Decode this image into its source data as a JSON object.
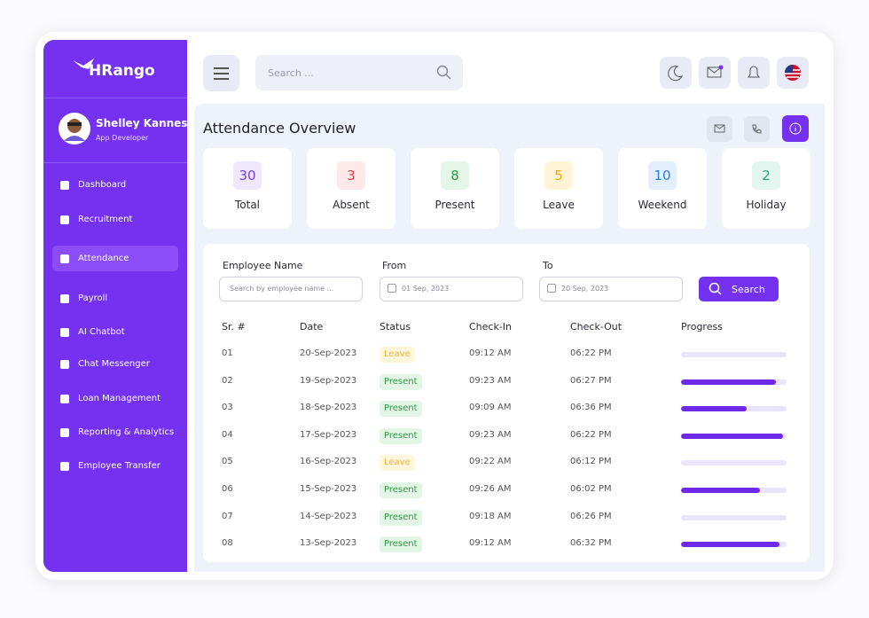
{
  "brand": "HRango",
  "search_placeholder": "Search ...",
  "user": {
    "name": "Shelley Kannes",
    "role": "App Developer"
  },
  "nav": [
    "Dashboard",
    "Recruitment",
    "Attendance",
    "Payroll",
    "AI Chatbot",
    "Chat Messenger",
    "Loan Management",
    "Reporting & Analytics",
    "Employee Transfer"
  ],
  "page_title": "Attendance Overview",
  "stats": [
    {
      "value": 30,
      "label": "Total",
      "color": "#7b3fe4",
      "bg": "#efe7fc"
    },
    {
      "value": 3,
      "label": "Absent",
      "color": "#e23b4a",
      "bg": "#fde8ea"
    },
    {
      "value": 8,
      "label": "Present",
      "color": "#2e9b46",
      "bg": "#e3f6e8"
    },
    {
      "value": 5,
      "label": "Leave",
      "color": "#f0a400",
      "bg": "#fff4d6"
    },
    {
      "value": 10,
      "label": "Weekend",
      "color": "#2f7de1",
      "bg": "#e3efff"
    },
    {
      "value": 2,
      "label": "Holiday",
      "color": "#27a57a",
      "bg": "#e2f6ef"
    }
  ],
  "filters": [
    {
      "label": "Employee Name",
      "placeholder": "Search by employee name ..."
    },
    {
      "label": "From",
      "placeholder": "01 Sep, 2023"
    },
    {
      "label": "To",
      "placeholder": "20 Sep, 2023"
    }
  ],
  "search_button": "Search",
  "table": {
    "columns": [
      "Sr. #",
      "Date",
      "Status",
      "Check-In",
      "Check-Out",
      "Progress"
    ],
    "rows": [
      {
        "sr": "01",
        "date": "20-Sep-2023",
        "status": "Leave",
        "status_color": "#f2b233",
        "status_bg": "#fff6dc",
        "check_in": "09:12 AM",
        "check_out": "06:22 PM",
        "progress": 0
      },
      {
        "sr": "02",
        "date": "19-Sep-2023",
        "status": "Present",
        "status_color": "#2f9a45",
        "status_bg": "#e3f5e5",
        "check_in": "09:23 AM",
        "check_out": "06:27 PM",
        "progress": 90
      },
      {
        "sr": "03",
        "date": "18-Sep-2023",
        "status": "Present",
        "status_color": "#2f9a45",
        "status_bg": "#e3f5e5",
        "check_in": "09:09 AM",
        "check_out": "06:36 PM",
        "progress": 62
      },
      {
        "sr": "04",
        "date": "17-Sep-2023",
        "status": "Present",
        "status_color": "#2f9a45",
        "status_bg": "#e3f5e5",
        "check_in": "09:23 AM",
        "check_out": "06:22 PM",
        "progress": 97
      },
      {
        "sr": "05",
        "date": "16-Sep-2023",
        "status": "Leave",
        "status_color": "#f2b233",
        "status_bg": "#fff6dc",
        "check_in": "09:22 AM",
        "check_out": "06:12 PM",
        "progress": 0
      },
      {
        "sr": "06",
        "date": "15-Sep-2023",
        "status": "Present",
        "status_color": "#2f9a45",
        "status_bg": "#e3f5e5",
        "check_in": "09:26 AM",
        "check_out": "06:02 PM",
        "progress": 75
      },
      {
        "sr": "07",
        "date": "14-Sep-2023",
        "status": "Present",
        "status_color": "#2f9a45",
        "status_bg": "#e3f5e5",
        "check_in": "09:18 AM",
        "check_out": "06:26 PM",
        "progress": 0
      },
      {
        "sr": "08",
        "date": "13-Sep-2023",
        "status": "Present",
        "status_color": "#2f9a45",
        "status_bg": "#e3f5e5",
        "check_in": "09:12 AM",
        "check_out": "06:32 PM",
        "progress": 93
      }
    ]
  }
}
